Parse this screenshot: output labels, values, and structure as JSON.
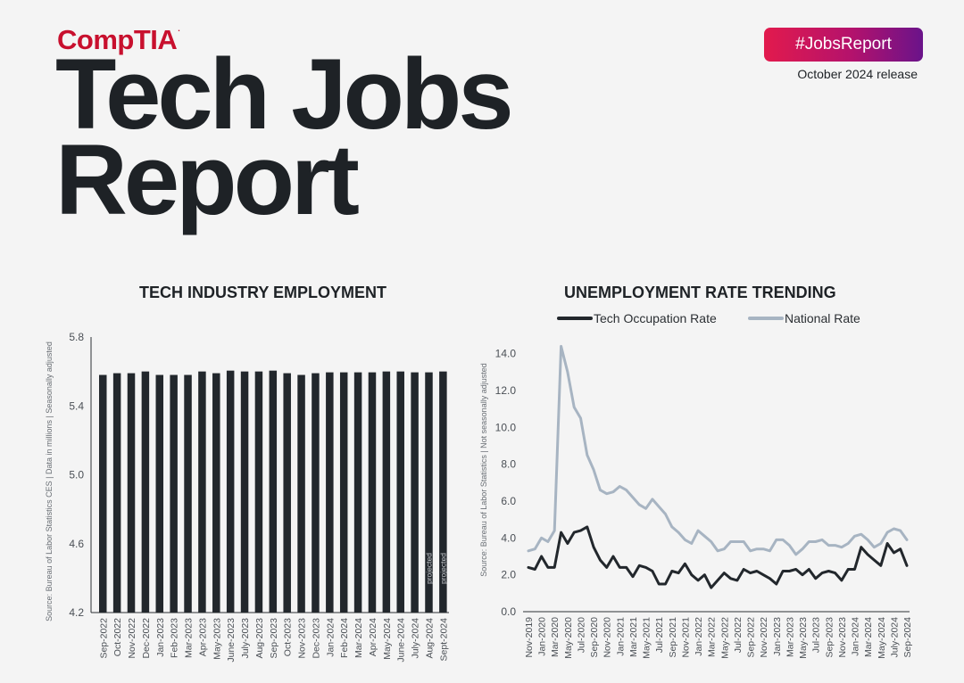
{
  "header": {
    "logo": "CompTIA",
    "logo_mark": ".",
    "title_line1": "Tech Jobs",
    "title_line2": "Report",
    "hashtag": "#JobsReport",
    "release": "October 2024 release"
  },
  "colors": {
    "brand_red": "#c8102e",
    "dark": "#22272c",
    "light": "#a7b4c2"
  },
  "chart_data": [
    {
      "type": "bar",
      "title": "TECH INDUSTRY EMPLOYMENT",
      "ylabel": "Source: Bureau of Labor Statistics CES | Data in millions | Seasonally adjusted",
      "xlabel": "",
      "ylim": [
        4.2,
        5.8
      ],
      "yticks": [
        "4.2",
        "4.6",
        "5.0",
        "5.4",
        "5.8"
      ],
      "categories": [
        "Sep-2022",
        "Oct-2022",
        "Nov-2022",
        "Dec-2022",
        "Jan-2023",
        "Feb-2023",
        "Mar-2023",
        "Apr-2023",
        "May-2023",
        "June-2023",
        "July-2023",
        "Aug-2023",
        "Sep-2023",
        "Oct-2023",
        "Nov-2023",
        "Dec-2023",
        "Jan-2024",
        "Feb-2024",
        "Mar-2024",
        "Apr-2024",
        "May-2024",
        "June-2024",
        "July-2024",
        "Aug-2024",
        "Sept-2024"
      ],
      "values": [
        5.58,
        5.59,
        5.59,
        5.6,
        5.58,
        5.58,
        5.58,
        5.6,
        5.59,
        5.605,
        5.6,
        5.6,
        5.605,
        5.59,
        5.58,
        5.59,
        5.595,
        5.595,
        5.595,
        5.595,
        5.6,
        5.6,
        5.595,
        5.595,
        5.6
      ],
      "annotations": [
        {
          "category": "Aug-2024",
          "text": "projected"
        },
        {
          "category": "Sept-2024",
          "text": "projected"
        }
      ],
      "legend": null,
      "grid": false
    },
    {
      "type": "line",
      "title": "UNEMPLOYMENT RATE TRENDING",
      "ylabel": "Source: Bureau of Labor Statistics | Not seasonally adjusted",
      "xlabel": "",
      "ylim": [
        0,
        15
      ],
      "yticks": [
        "0.0",
        "2.0",
        "4.0",
        "6.0",
        "8.0",
        "10.0",
        "12.0",
        "14.0"
      ],
      "x_labels": [
        "Nov-2019",
        "Jan-2020",
        "Mar-2020",
        "May-2020",
        "Jul-2020",
        "Sep-2020",
        "Nov-2020",
        "Jan-2021",
        "Mar-2021",
        "May-2021",
        "Jul-2021",
        "Sep-2021",
        "Nov-2021",
        "Jan-2022",
        "Mar-2022",
        "May-2022",
        "Jul-2022",
        "Sep-2022",
        "Nov-2022",
        "Jan-2023",
        "Mar-2023",
        "May-2023",
        "Jul-2023",
        "Sep-2023",
        "Nov-2023",
        "Jan-2024",
        "Mar-2024",
        "May-2024",
        "July-2024",
        "Sep-2024"
      ],
      "legend_position": "top",
      "grid": false,
      "series": [
        {
          "name": "Tech Occupation Rate",
          "color": "#22272c",
          "values": [
            2.4,
            2.3,
            3.0,
            2.4,
            2.4,
            4.3,
            3.7,
            4.3,
            4.4,
            4.6,
            3.5,
            2.8,
            2.4,
            3.0,
            2.4,
            2.4,
            1.9,
            2.5,
            2.4,
            2.2,
            1.5,
            1.5,
            2.2,
            2.1,
            2.6,
            2.0,
            1.7,
            2.0,
            1.3,
            1.7,
            2.1,
            1.8,
            1.7,
            2.3,
            2.1,
            2.2,
            2.0,
            1.8,
            1.5,
            2.2,
            2.2,
            2.3,
            2.0,
            2.3,
            1.8,
            2.1,
            2.2,
            2.1,
            1.7,
            2.3,
            2.3,
            3.5,
            3.1,
            2.8,
            2.5,
            3.7,
            3.2,
            3.4,
            2.5
          ]
        },
        {
          "name": "National Rate",
          "color": "#a7b4c2",
          "values": [
            3.3,
            3.4,
            4.0,
            3.8,
            4.4,
            14.4,
            13.0,
            11.1,
            10.5,
            8.5,
            7.7,
            6.6,
            6.4,
            6.5,
            6.8,
            6.6,
            6.2,
            5.8,
            5.6,
            6.1,
            5.7,
            5.3,
            4.6,
            4.3,
            3.9,
            3.7,
            4.4,
            4.1,
            3.8,
            3.3,
            3.4,
            3.8,
            3.8,
            3.8,
            3.3,
            3.4,
            3.4,
            3.3,
            3.9,
            3.9,
            3.6,
            3.1,
            3.4,
            3.8,
            3.8,
            3.9,
            3.6,
            3.6,
            3.5,
            3.7,
            4.1,
            4.2,
            3.9,
            3.5,
            3.7,
            4.3,
            4.5,
            4.4,
            3.9
          ]
        }
      ]
    }
  ]
}
